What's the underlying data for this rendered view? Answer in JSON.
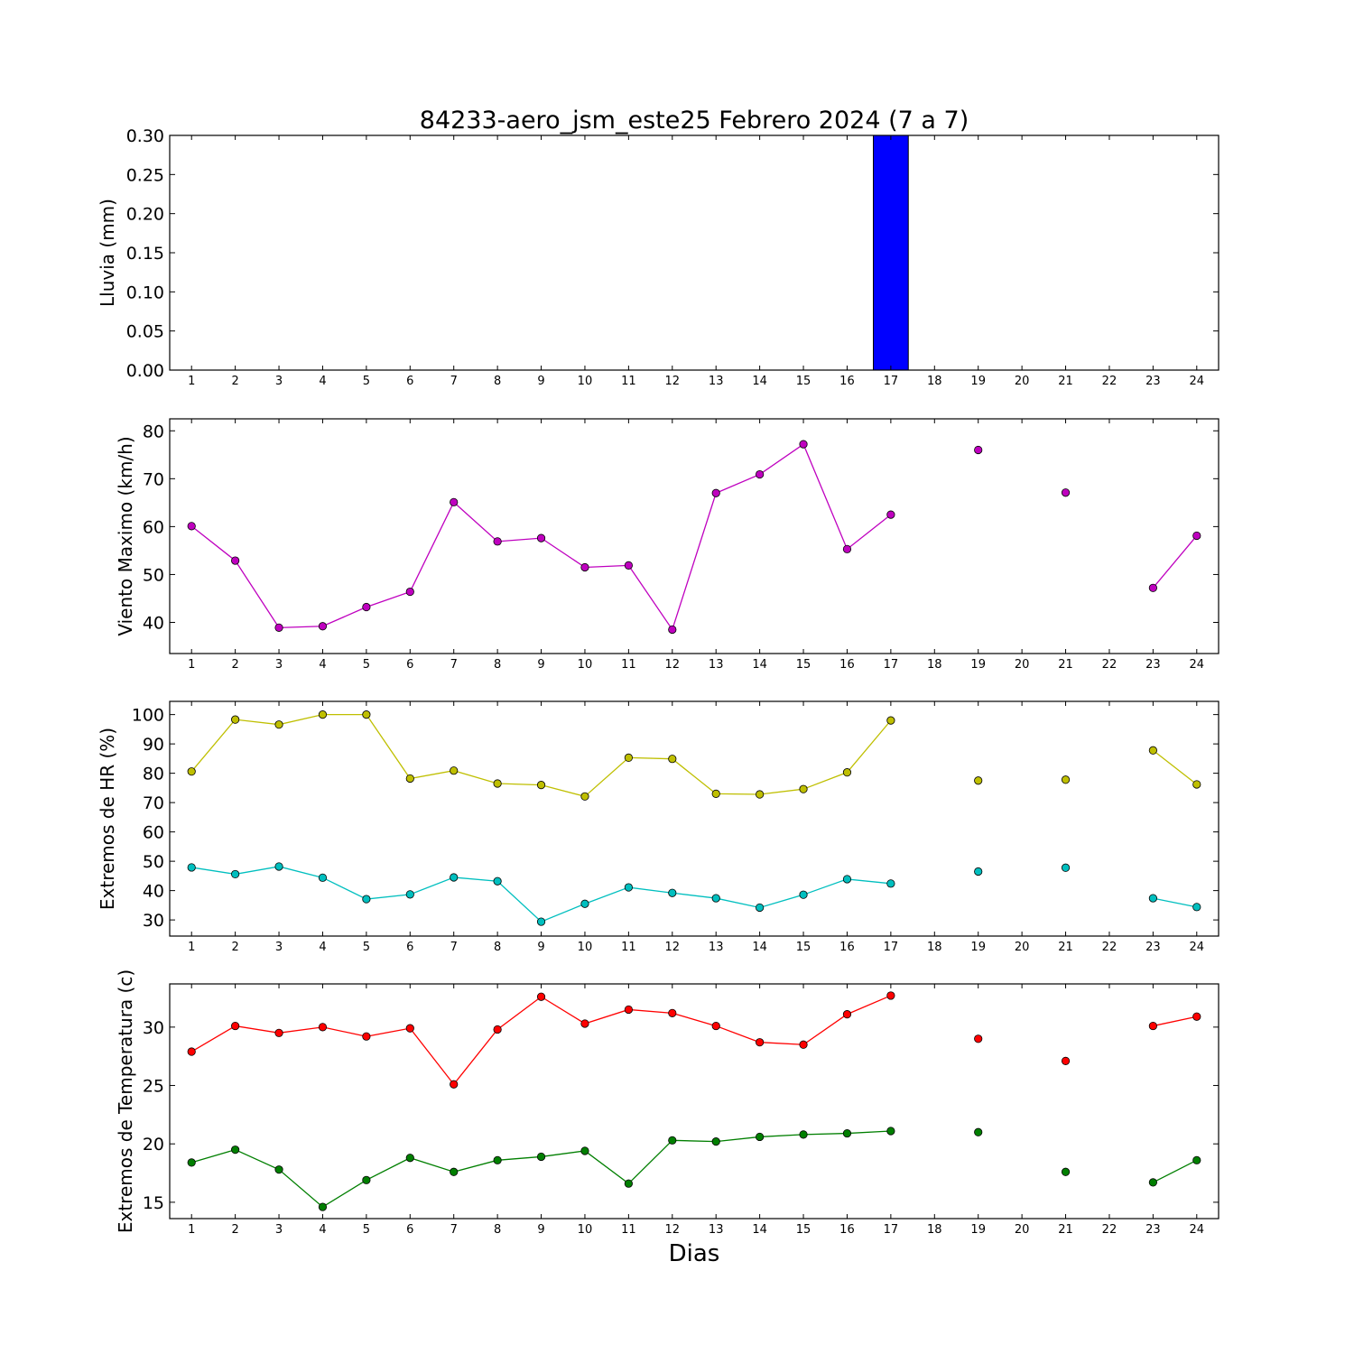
{
  "chart_data": {
    "title": "84233-aero_jsm_este25 Febrero 2024  (7 a 7)",
    "xlabel": "Dias",
    "x": [
      1,
      2,
      3,
      4,
      5,
      6,
      7,
      8,
      9,
      10,
      11,
      12,
      13,
      14,
      15,
      16,
      17,
      18,
      19,
      20,
      21,
      22,
      23,
      24
    ],
    "xlim": [
      0.5,
      24.5
    ],
    "grid": false,
    "panels": [
      {
        "type": "bar",
        "ylabel": "Lluvia (mm)",
        "ylim": [
          0,
          0.3
        ],
        "yticks": [
          "0.00",
          "0.05",
          "0.10",
          "0.15",
          "0.20",
          "0.25",
          "0.30"
        ],
        "xticks": [
          "1",
          "2",
          "3",
          "4",
          "5",
          "6",
          "7",
          "8",
          "9",
          "10",
          "11",
          "12",
          "13",
          "14",
          "15",
          "16",
          "17",
          "18",
          "19",
          "20",
          "21",
          "22",
          "23",
          "24"
        ],
        "bar_color": "#0000ff",
        "values": [
          0,
          0,
          0,
          0,
          0,
          0,
          0,
          0,
          0,
          0,
          0,
          0,
          0,
          0,
          0,
          0,
          0.3,
          0,
          0,
          0,
          0,
          0,
          0,
          0
        ]
      },
      {
        "type": "line",
        "ylabel": "Viento Maximo (km/h)",
        "ylim": [
          33.5,
          82.5
        ],
        "yticks": [
          "40",
          "50",
          "60",
          "70",
          "80"
        ],
        "xticks": [
          "1",
          "2",
          "3",
          "4",
          "5",
          "6",
          "7",
          "8",
          "9",
          "10",
          "11",
          "12",
          "13",
          "14",
          "15",
          "16",
          "17",
          "18",
          "19",
          "20",
          "21",
          "22",
          "23",
          "24"
        ],
        "series": [
          {
            "color": "#bf00bf",
            "values": [
              60.1,
              52.9,
              38.9,
              39.2,
              43.2,
              46.4,
              65.1,
              56.9,
              57.6,
              51.5,
              51.9,
              38.5,
              67.0,
              70.9,
              77.2,
              55.3,
              62.5,
              null,
              76.0,
              null,
              67.1,
              null,
              47.2,
              58.1
            ]
          }
        ]
      },
      {
        "type": "line",
        "ylabel": "Extremos de HR (%)",
        "ylim": [
          24.5,
          104.5
        ],
        "yticks": [
          "30",
          "40",
          "50",
          "60",
          "70",
          "80",
          "90",
          "100"
        ],
        "xticks": [
          "1",
          "2",
          "3",
          "4",
          "5",
          "6",
          "7",
          "8",
          "9",
          "10",
          "11",
          "12",
          "13",
          "14",
          "15",
          "16",
          "17",
          "18",
          "19",
          "20",
          "21",
          "22",
          "23",
          "24"
        ],
        "series": [
          {
            "color": "#bfbf00",
            "values": [
              80.6,
              98.3,
              96.6,
              100,
              100,
              78.2,
              80.9,
              76.5,
              76.0,
              72.1,
              85.3,
              84.9,
              73.0,
              72.8,
              74.6,
              80.3,
              98.0,
              null,
              77.5,
              null,
              77.8,
              null,
              87.8,
              76.2
            ]
          },
          {
            "color": "#00bfbf",
            "values": [
              47.9,
              45.6,
              48.2,
              44.4,
              37.1,
              38.7,
              44.5,
              43.2,
              29.4,
              35.5,
              41.1,
              39.2,
              37.4,
              34.2,
              38.6,
              43.9,
              42.4,
              null,
              46.5,
              null,
              47.8,
              null,
              37.4,
              34.4
            ]
          }
        ]
      },
      {
        "type": "line",
        "ylabel": "Extremos de Temperatura (c)",
        "ylim": [
          13.6,
          33.7
        ],
        "yticks": [
          "15",
          "20",
          "25",
          "30"
        ],
        "xticks": [
          "1",
          "2",
          "3",
          "4",
          "5",
          "6",
          "7",
          "8",
          "9",
          "10",
          "11",
          "12",
          "13",
          "14",
          "15",
          "16",
          "17",
          "18",
          "19",
          "20",
          "21",
          "22",
          "23",
          "24"
        ],
        "series": [
          {
            "color": "#ff0000",
            "values": [
              27.9,
              30.1,
              29.5,
              30.0,
              29.2,
              29.9,
              25.1,
              29.8,
              32.6,
              30.3,
              31.5,
              31.2,
              30.1,
              28.7,
              28.5,
              31.1,
              32.7,
              null,
              29.0,
              null,
              27.1,
              null,
              30.1,
              30.9
            ]
          },
          {
            "color": "#007f00",
            "values": [
              18.4,
              19.5,
              17.8,
              14.6,
              16.9,
              18.8,
              17.6,
              18.6,
              18.9,
              19.4,
              16.6,
              20.3,
              20.2,
              20.6,
              20.8,
              20.9,
              21.1,
              null,
              21.0,
              null,
              17.6,
              null,
              16.7,
              18.6
            ]
          }
        ]
      }
    ]
  }
}
